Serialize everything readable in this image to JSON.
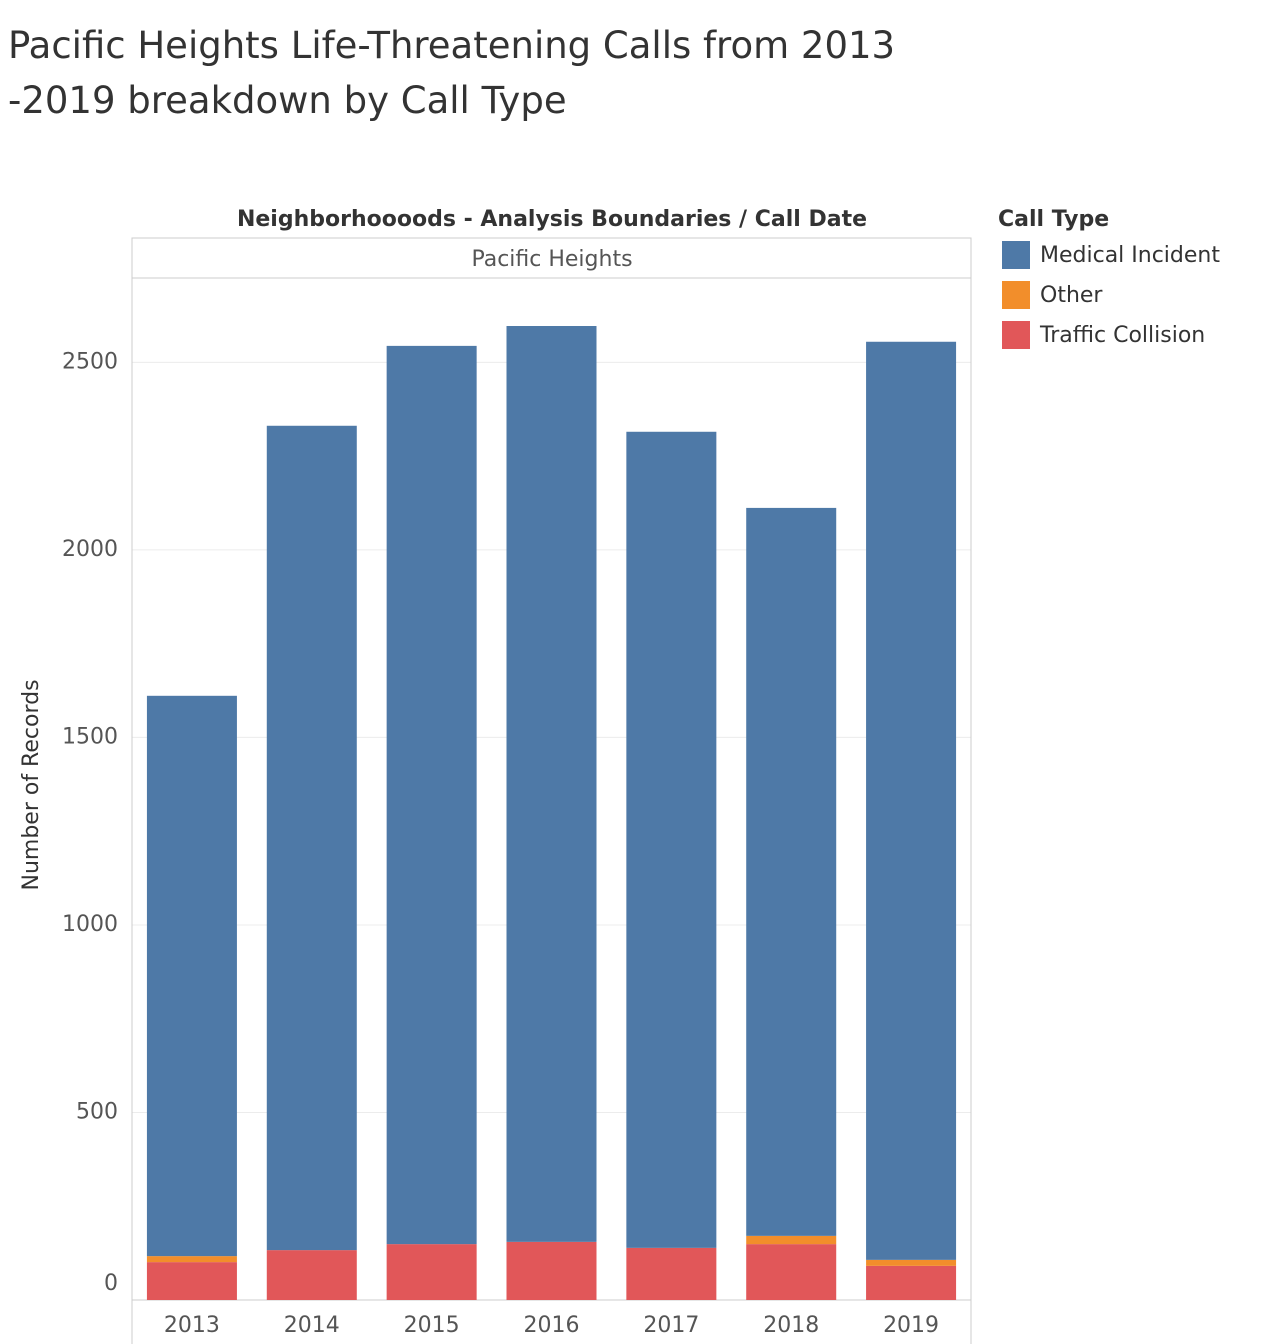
{
  "chart_data": {
    "type": "stacked_bar",
    "title": "Pacific Heights Life-Threatening Calls from 2013 -2019  breakdown by Call Type",
    "header": "Neighborhoooods - Analysis Boundaries  /  Call Date",
    "panel_label": "Pacific Heights",
    "y_label": "Number of Records",
    "legend_title": "Call Type",
    "legend_position": "right",
    "categories": [
      "2013",
      "2014",
      "2015",
      "2016",
      "2017",
      "2018",
      "2019"
    ],
    "series": [
      {
        "name": "Medical Incident",
        "color": "#4e79a7",
        "values": [
          1494,
          2198,
          2395,
          2442,
          2176,
          1941,
          2448
        ]
      },
      {
        "name": "Other",
        "color": "#f28e2b",
        "values": [
          16,
          0,
          0,
          0,
          0,
          22,
          16
        ]
      },
      {
        "name": "Traffic Collision",
        "color": "#e15759",
        "values": [
          101,
          133,
          149,
          155,
          139,
          149,
          91
        ]
      }
    ],
    "ylim": [
      0,
      2725
    ],
    "yticks": [
      0,
      500,
      1000,
      1500,
      2000,
      2500
    ],
    "grid": true
  }
}
